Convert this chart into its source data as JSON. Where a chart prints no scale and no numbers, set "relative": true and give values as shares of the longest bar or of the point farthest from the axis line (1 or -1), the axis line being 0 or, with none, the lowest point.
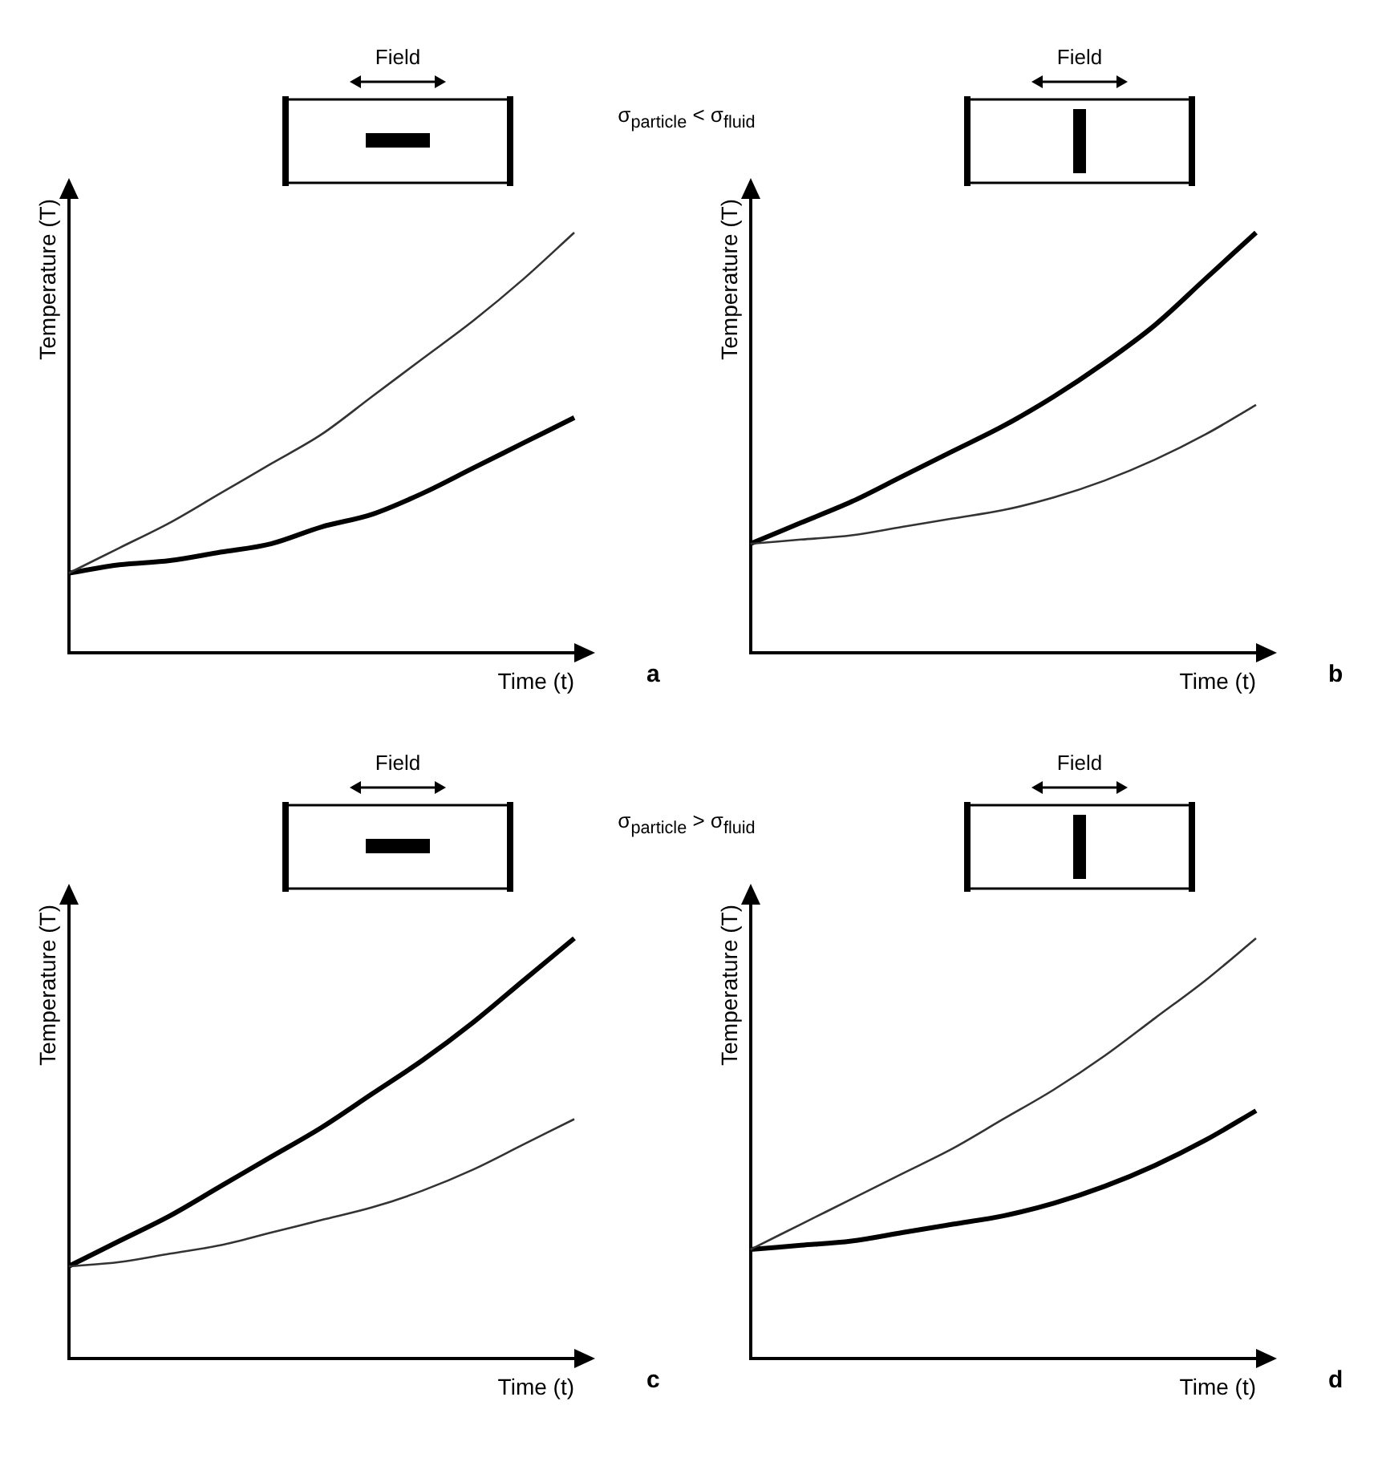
{
  "chart_data": [
    {
      "type": "line",
      "relative": true,
      "xlabel": "Time (t)",
      "ylabel": "Temperature (T)",
      "categories": [
        null,
        null,
        null,
        null,
        null,
        null,
        null,
        null,
        null,
        null,
        null
      ],
      "annotations": [
        "Field",
        "σ$_{particle}$ < σ$_{fluid}$",
        "a"
      ],
      "legend": false,
      "grid": false,
      "series": [
        {
          "color": "#333333",
          "values": [
            0.19,
            0.25,
            0.31,
            0.38,
            0.45,
            0.52,
            0.61,
            0.7,
            0.79,
            0.89,
            1
          ]
        },
        {
          "color": "#000000",
          "values": [
            0.19,
            0.21,
            0.22,
            0.24,
            0.26,
            0.3,
            0.33,
            0.38,
            0.44,
            0.5,
            0.56
          ]
        }
      ]
    },
    {
      "type": "line",
      "relative": true,
      "xlabel": "Time (t)",
      "ylabel": "Temperature (T)",
      "categories": [
        null,
        null,
        null,
        null,
        null,
        null,
        null,
        null,
        null,
        null,
        null
      ],
      "annotations": [
        "Field",
        "b"
      ],
      "legend": false,
      "grid": false,
      "series": [
        {
          "color": "#333333",
          "values": [
            0.26,
            0.27,
            0.28,
            0.3,
            0.32,
            0.34,
            0.37,
            0.41,
            0.46,
            0.52,
            0.59
          ]
        },
        {
          "color": "#000000",
          "values": [
            0.26,
            0.31,
            0.36,
            0.42,
            0.48,
            0.54,
            0.61,
            0.69,
            0.78,
            0.89,
            1
          ]
        }
      ]
    },
    {
      "type": "line",
      "relative": true,
      "xlabel": "Time (t)",
      "ylabel": "Temperature (T)",
      "categories": [
        null,
        null,
        null,
        null,
        null,
        null,
        null,
        null,
        null,
        null,
        null
      ],
      "annotations": [
        "Field",
        "σ$_{particle}$ > σ$_{fluid}$",
        "c"
      ],
      "legend": false,
      "grid": false,
      "series": [
        {
          "color": "#333333",
          "values": [
            0.22,
            0.23,
            0.25,
            0.27,
            0.3,
            0.33,
            0.36,
            0.4,
            0.45,
            0.51,
            0.57
          ]
        },
        {
          "color": "#000000",
          "values": [
            0.22,
            0.28,
            0.34,
            0.41,
            0.48,
            0.55,
            0.63,
            0.71,
            0.8,
            0.9,
            1
          ]
        }
      ]
    },
    {
      "type": "line",
      "relative": true,
      "xlabel": "Time (t)",
      "ylabel": "Temperature (T)",
      "categories": [
        null,
        null,
        null,
        null,
        null,
        null,
        null,
        null,
        null,
        null,
        null
      ],
      "annotations": [
        "Field",
        "d"
      ],
      "legend": false,
      "grid": false,
      "series": [
        {
          "color": "#333333",
          "values": [
            0.26,
            0.32,
            0.38,
            0.44,
            0.5,
            0.57,
            0.64,
            0.72,
            0.81,
            0.9,
            1
          ]
        },
        {
          "color": "#000000",
          "values": [
            0.26,
            0.27,
            0.28,
            0.3,
            0.32,
            0.34,
            0.37,
            0.41,
            0.46,
            0.52,
            0.59
          ]
        }
      ]
    }
  ]
}
